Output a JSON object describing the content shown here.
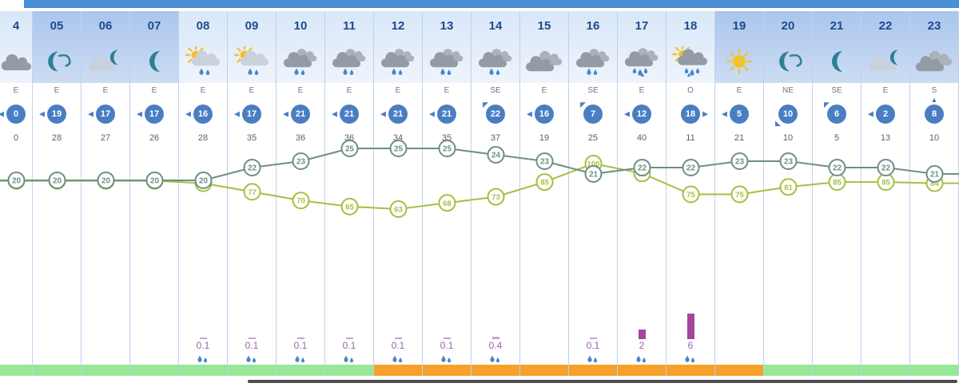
{
  "colors": {
    "topbar_blue": "#4a8ed6",
    "hour_text": "#1c4b8f",
    "wind_circle_blue": "#4a7ec2",
    "separator": "#bdd2ee",
    "temp_line": "#6d8f85",
    "humidity_line": "#a3c13d",
    "precip_text": "#90699f",
    "precip_bar": "#a4459f",
    "precip_tick": "#c9a2cc",
    "band_green": "#97e897",
    "band_orange": "#f7a129",
    "scrollbar_dark": "#4d4d4d",
    "drop_blue": "#4a86c8",
    "sun_yellow": "#f5c02f",
    "moon_teal": "#2f7f95",
    "cloud_grey": "#939ba5",
    "cloud_grey_light": "#aab2bb",
    "cloud_light": "#c9d2dc"
  },
  "columns": [
    {
      "hour": "4",
      "shade": "light",
      "icon": "cloud",
      "wind_dir": "E",
      "wind_speed": "0",
      "gust": "0",
      "precip": null,
      "band": "green"
    },
    {
      "hour": "05",
      "shade": "dark",
      "icon": "moon-wind",
      "wind_dir": "E",
      "wind_speed": "19",
      "gust": "28",
      "precip": null,
      "band": "green"
    },
    {
      "hour": "06",
      "shade": "dark",
      "icon": "moon-cloud",
      "wind_dir": "E",
      "wind_speed": "17",
      "gust": "27",
      "precip": null,
      "band": "green"
    },
    {
      "hour": "07",
      "shade": "dark",
      "icon": "moon",
      "wind_dir": "E",
      "wind_speed": "17",
      "gust": "26",
      "precip": null,
      "band": "green"
    },
    {
      "hour": "08",
      "shade": "light",
      "icon": "sun-cloud-rain",
      "wind_dir": "E",
      "wind_speed": "16",
      "gust": "28",
      "precip": "0.1",
      "band": "green"
    },
    {
      "hour": "09",
      "shade": "light",
      "icon": "sun-cloud-rain",
      "wind_dir": "E",
      "wind_speed": "17",
      "gust": "35",
      "precip": "0.1",
      "band": "green"
    },
    {
      "hour": "10",
      "shade": "light",
      "icon": "cloud-rain",
      "wind_dir": "E",
      "wind_speed": "21",
      "gust": "36",
      "precip": "0.1",
      "band": "green"
    },
    {
      "hour": "11",
      "shade": "light",
      "icon": "cloud-rain",
      "wind_dir": "E",
      "wind_speed": "21",
      "gust": "36",
      "precip": "0.1",
      "band": "green"
    },
    {
      "hour": "12",
      "shade": "light",
      "icon": "cloud-rain",
      "wind_dir": "E",
      "wind_speed": "21",
      "gust": "34",
      "precip": "0.1",
      "band": "orange"
    },
    {
      "hour": "13",
      "shade": "light",
      "icon": "cloud-rain",
      "wind_dir": "E",
      "wind_speed": "21",
      "gust": "35",
      "precip": "0.1",
      "band": "orange"
    },
    {
      "hour": "14",
      "shade": "light",
      "icon": "cloud-rain",
      "wind_dir": "SE",
      "wind_speed": "22",
      "gust": "37",
      "precip": "0.4",
      "band": "orange"
    },
    {
      "hour": "15",
      "shade": "light",
      "icon": "clouds",
      "wind_dir": "E",
      "wind_speed": "16",
      "gust": "19",
      "precip": null,
      "band": "orange"
    },
    {
      "hour": "16",
      "shade": "light",
      "icon": "cloud-rain",
      "wind_dir": "SE",
      "wind_speed": "7",
      "gust": "25",
      "precip": "0.1",
      "band": "orange"
    },
    {
      "hour": "17",
      "shade": "light",
      "icon": "cloud-heavy-rain",
      "wind_dir": "E",
      "wind_speed": "12",
      "gust": "40",
      "precip": "2",
      "band": "orange"
    },
    {
      "hour": "18",
      "shade": "light",
      "icon": "sun-cloud-heavy-rain",
      "wind_dir": "O",
      "wind_speed": "18",
      "gust": "11",
      "precip": "6",
      "band": "orange"
    },
    {
      "hour": "19",
      "shade": "dark",
      "icon": "sun",
      "wind_dir": "E",
      "wind_speed": "5",
      "gust": "21",
      "precip": null,
      "band": "orange"
    },
    {
      "hour": "20",
      "shade": "dark",
      "icon": "moon-wind",
      "wind_dir": "NE",
      "wind_speed": "10",
      "gust": "10",
      "precip": null,
      "band": "green"
    },
    {
      "hour": "21",
      "shade": "dark",
      "icon": "moon",
      "wind_dir": "SE",
      "wind_speed": "6",
      "gust": "5",
      "precip": null,
      "band": "green"
    },
    {
      "hour": "22",
      "shade": "dark",
      "icon": "moon-cloud",
      "wind_dir": "E",
      "wind_speed": "2",
      "gust": "13",
      "precip": null,
      "band": "green"
    },
    {
      "hour": "23",
      "shade": "dark",
      "icon": "clouds",
      "wind_dir": "S",
      "wind_speed": "8",
      "gust": "10",
      "precip": null,
      "band": "green"
    }
  ],
  "chart_data": {
    "type": "line",
    "categories": [
      "4",
      "05",
      "06",
      "07",
      "08",
      "09",
      "10",
      "11",
      "12",
      "13",
      "14",
      "15",
      "16",
      "17",
      "18",
      "19",
      "20",
      "21",
      "22",
      "23"
    ],
    "series": [
      {
        "name": "temperature",
        "values": [
          20,
          20,
          20,
          20,
          20,
          22,
          23,
          25,
          25,
          25,
          24,
          23,
          21,
          22,
          22,
          23,
          23,
          22,
          22,
          21
        ]
      },
      {
        "name": "humidity",
        "values": [
          86,
          86,
          86,
          86,
          84,
          77,
          70,
          65,
          63,
          68,
          73,
          85,
          100,
          92,
          75,
          75,
          81,
          85,
          85,
          84
        ]
      }
    ],
    "legend": "none",
    "grid": "off"
  }
}
